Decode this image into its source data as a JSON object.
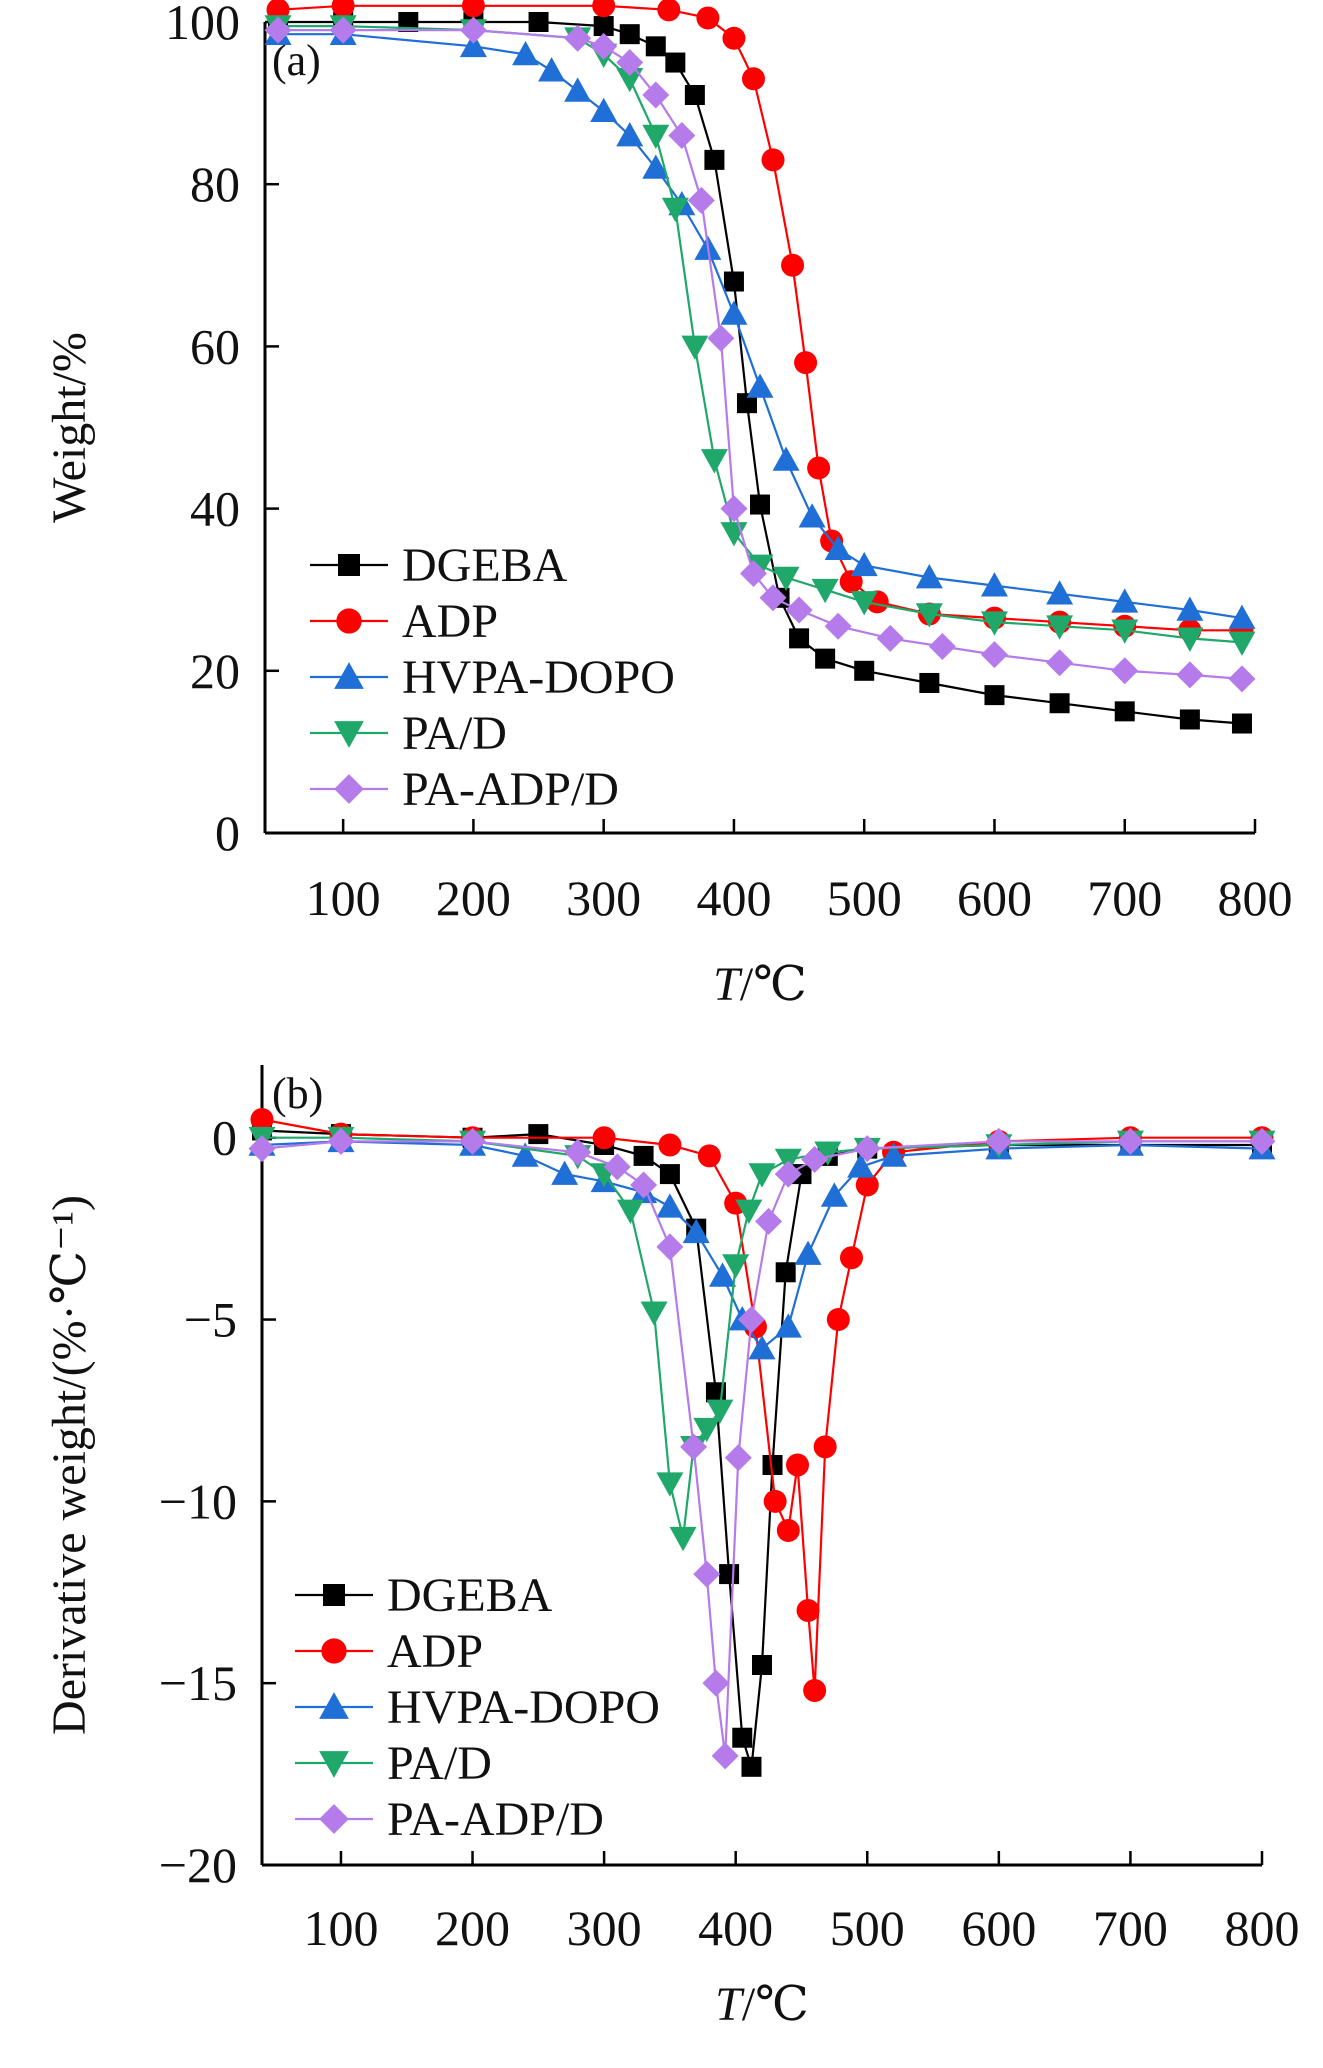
{
  "chart_data": [
    {
      "type": "line",
      "panel_label": "(a)",
      "xlabel_italic": "T",
      "xlabel_rest": "/℃",
      "ylabel": "Weight/%",
      "xlim": [
        40,
        800
      ],
      "ylim": [
        0,
        100
      ],
      "xticks": [
        100,
        200,
        300,
        400,
        500,
        600,
        700,
        800
      ],
      "yticks": [
        0,
        20,
        40,
        60,
        80,
        100
      ],
      "legend_position": "lower-left",
      "series": [
        {
          "name": "DGEBA",
          "color": "#000000",
          "marker": "square",
          "x": [
            50,
            100,
            150,
            200,
            250,
            300,
            320,
            340,
            355,
            370,
            385,
            400,
            410,
            420,
            435,
            450,
            470,
            500,
            550,
            600,
            650,
            700,
            750,
            790
          ],
          "y": [
            100,
            100,
            100,
            100,
            100,
            99.5,
            98.5,
            97,
            95,
            91,
            83,
            68,
            53,
            40.5,
            29,
            24,
            21.5,
            20,
            18.5,
            17,
            16,
            15,
            14,
            13.5
          ]
        },
        {
          "name": "ADP",
          "color": "#ff0000",
          "marker": "circle",
          "x": [
            50,
            100,
            200,
            300,
            350,
            380,
            400,
            415,
            430,
            445,
            455,
            465,
            475,
            490,
            510,
            550,
            600,
            650,
            700,
            750,
            790
          ],
          "y": [
            101.5,
            102,
            102,
            102,
            101.5,
            100.5,
            98,
            93,
            83,
            70,
            58,
            45,
            36,
            31,
            28.5,
            27,
            26.5,
            26,
            25.5,
            25,
            25
          ]
        },
        {
          "name": "HVPA-DOPO",
          "color": "#1f6fd6",
          "marker": "triangle-up",
          "x": [
            50,
            100,
            200,
            240,
            260,
            280,
            300,
            320,
            340,
            360,
            380,
            400,
            420,
            440,
            460,
            480,
            500,
            550,
            600,
            650,
            700,
            750,
            790
          ],
          "y": [
            98.5,
            98.5,
            97,
            96,
            94,
            91.5,
            89,
            86,
            82,
            77.5,
            72,
            64,
            55,
            46,
            39,
            35,
            33,
            31.5,
            30.5,
            29.5,
            28.5,
            27.5,
            26.5
          ]
        },
        {
          "name": "PA/D",
          "color": "#1fa86a",
          "marker": "triangle-down",
          "x": [
            50,
            100,
            200,
            280,
            300,
            320,
            340,
            355,
            370,
            385,
            400,
            420,
            440,
            470,
            500,
            550,
            600,
            650,
            700,
            750,
            790
          ],
          "y": [
            99.5,
            99.5,
            99,
            98,
            96,
            93,
            86,
            77,
            60,
            46,
            37,
            33,
            31.5,
            30,
            28.5,
            27,
            26,
            25.5,
            25,
            24,
            23.5
          ]
        },
        {
          "name": "PA-ADP/D",
          "color": "#b57bea",
          "marker": "diamond",
          "x": [
            50,
            100,
            200,
            280,
            300,
            320,
            340,
            360,
            375,
            390,
            400,
            415,
            430,
            450,
            480,
            520,
            560,
            600,
            650,
            700,
            750,
            790
          ],
          "y": [
            99,
            99,
            99,
            98,
            97,
            95,
            91,
            86,
            78,
            61,
            40,
            32,
            29,
            27.5,
            25.5,
            24,
            23,
            22,
            21,
            20,
            19.5,
            19
          ]
        }
      ]
    },
    {
      "type": "line",
      "panel_label": "(b)",
      "xlabel_italic": "T",
      "xlabel_rest": "/℃",
      "ylabel": "Derivative weight/(%·℃⁻¹)",
      "xlim": [
        40,
        800
      ],
      "ylim": [
        -20,
        2
      ],
      "xticks": [
        100,
        200,
        300,
        400,
        500,
        600,
        700,
        800
      ],
      "yticks": [
        0,
        -5,
        -10,
        -15,
        -20
      ],
      "ytick_labels": [
        "0",
        "−5",
        "−10",
        "−15",
        "−20"
      ],
      "legend_position": "lower-left",
      "series": [
        {
          "name": "DGEBA",
          "color": "#000000",
          "marker": "square",
          "x": [
            40,
            100,
            200,
            250,
            300,
            330,
            350,
            370,
            385,
            395,
            405,
            412,
            420,
            428,
            438,
            450,
            470,
            500,
            600,
            700,
            800
          ],
          "y": [
            0.2,
            0.1,
            0,
            0.1,
            -0.2,
            -0.5,
            -1,
            -2.5,
            -7,
            -12,
            -16.5,
            -17.3,
            -14.5,
            -9,
            -3.7,
            -1,
            -0.5,
            -0.3,
            -0.2,
            -0.2,
            -0.2
          ]
        },
        {
          "name": "ADP",
          "color": "#ff0000",
          "marker": "circle",
          "x": [
            40,
            100,
            200,
            300,
            350,
            380,
            400,
            415,
            430,
            440,
            447,
            455,
            460,
            468,
            478,
            488,
            500,
            520,
            600,
            700,
            800
          ],
          "y": [
            0.5,
            0.1,
            0,
            0,
            -0.2,
            -0.5,
            -1.8,
            -5.2,
            -10,
            -10.8,
            -9,
            -13,
            -15.2,
            -8.5,
            -5,
            -3.3,
            -1.3,
            -0.4,
            -0.1,
            0,
            0
          ]
        },
        {
          "name": "HVPA-DOPO",
          "color": "#1f6fd6",
          "marker": "triangle-up",
          "x": [
            40,
            100,
            200,
            240,
            270,
            300,
            330,
            350,
            370,
            390,
            405,
            420,
            440,
            455,
            475,
            495,
            520,
            600,
            700,
            800
          ],
          "y": [
            -0.2,
            -0.1,
            -0.2,
            -0.5,
            -1,
            -1.2,
            -1.5,
            -1.9,
            -2.6,
            -3.8,
            -5,
            -5.8,
            -5.2,
            -3.2,
            -1.6,
            -0.8,
            -0.5,
            -0.3,
            -0.2,
            -0.3
          ]
        },
        {
          "name": "PA/D",
          "color": "#1fa86a",
          "marker": "triangle-down",
          "x": [
            40,
            100,
            200,
            280,
            300,
            320,
            338,
            350,
            360,
            368,
            378,
            388,
            400,
            410,
            420,
            440,
            470,
            500,
            600,
            700,
            800
          ],
          "y": [
            0,
            0,
            -0.1,
            -0.5,
            -1,
            -2,
            -4.8,
            -9.5,
            -11,
            -8.5,
            -8,
            -7.5,
            -3.5,
            -2,
            -1,
            -0.6,
            -0.4,
            -0.3,
            -0.2,
            -0.1,
            -0.1
          ]
        },
        {
          "name": "PA-ADP/D",
          "color": "#b57bea",
          "marker": "diamond",
          "x": [
            40,
            100,
            200,
            280,
            310,
            330,
            350,
            368,
            378,
            385,
            392,
            402,
            412,
            425,
            440,
            460,
            500,
            600,
            700,
            800
          ],
          "y": [
            -0.3,
            -0.1,
            -0.1,
            -0.4,
            -0.8,
            -1.3,
            -3,
            -8.5,
            -12,
            -15,
            -17,
            -8.8,
            -5,
            -2.3,
            -1,
            -0.6,
            -0.3,
            -0.1,
            -0.1,
            -0.1
          ]
        }
      ]
    }
  ]
}
